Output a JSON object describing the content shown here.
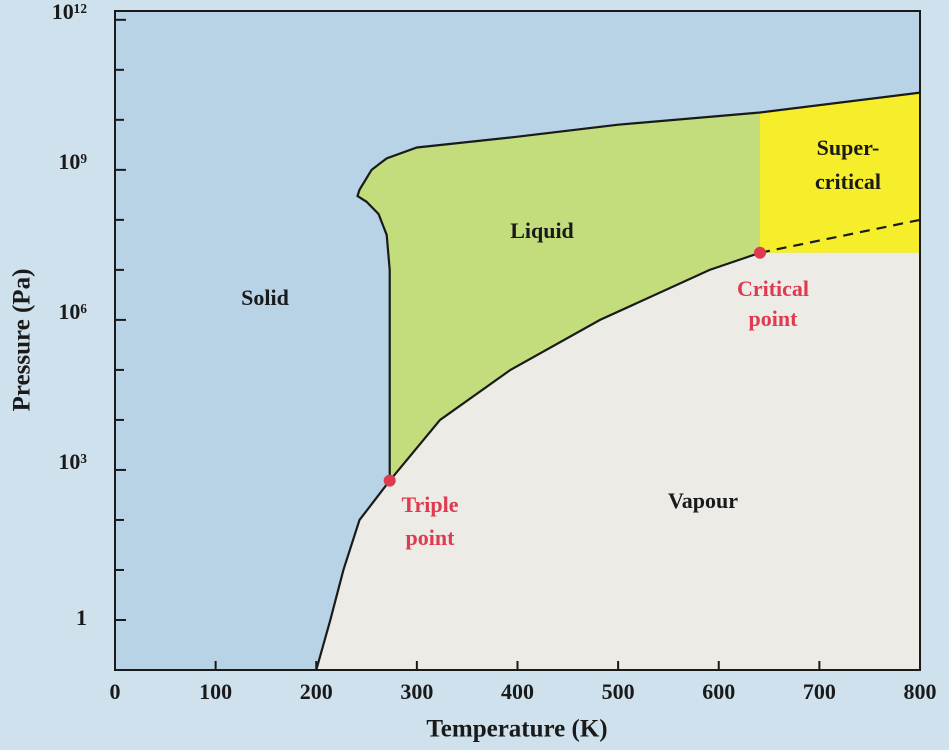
{
  "chart_data": {
    "type": "phase",
    "xlabel": "Temperature (K)",
    "ylabel": "Pressure (Pa)",
    "xlim": [
      0,
      800
    ],
    "xticks": [
      0,
      100,
      200,
      300,
      400,
      500,
      600,
      700,
      800
    ],
    "ylim": [
      0.1,
      1500000000000.0
    ],
    "log_y": true,
    "yticks": [
      1,
      {
        "value": 1000,
        "label": "10³"
      },
      {
        "value": 1000000,
        "label": "10⁶"
      },
      {
        "value": 1000000000,
        "label": "10⁹"
      },
      {
        "value": 1000000000000,
        "label": "10¹²"
      }
    ],
    "yminorticks": [
      10,
      100,
      10000,
      100000,
      10000000,
      100000000,
      10000000000,
      100000000000
    ],
    "series": [
      {
        "x": [
          200,
          214,
          227,
          243,
          273
        ],
        "values": [
          0.1,
          1,
          10,
          100,
          611
        ],
        "color": "#1a1a1a"
      },
      {
        "x": [
          273,
          323,
          393,
          482,
          591,
          641
        ],
        "values": [
          611,
          10000,
          100000,
          1000000,
          10000000,
          22000000
        ],
        "color": "#1a1a1a"
      },
      {
        "x": [
          273,
          273,
          273,
          270,
          262,
          250,
          241,
          243,
          255,
          270,
          300,
          400,
          500,
          641,
          800
        ],
        "values": [
          611,
          100000,
          10000000,
          50000000,
          130000000,
          230000000,
          300000000,
          400000000,
          1000000000,
          1700000000,
          2800000000,
          4600000000,
          8000000000,
          14000000000,
          35000000000
        ],
        "color": "#1a1a1a"
      },
      {
        "x": [
          641,
          800
        ],
        "values": [
          22000000,
          100000000
        ],
        "color": "#1a1a1a",
        "style": "dashed"
      }
    ],
    "points": [
      {
        "x": 273,
        "value": 611,
        "label_lines": [
          "Triple",
          "point"
        ],
        "color": "#e03a50"
      },
      {
        "x": 641,
        "value": 22000000,
        "label_lines": [
          "Critical",
          "point"
        ],
        "color": "#e03a50"
      }
    ],
    "regions": [
      {
        "lines": [
          "Solid"
        ],
        "color": "#b7d3e5"
      },
      {
        "lines": [
          "Liquid"
        ],
        "color": "#c3dc7c"
      },
      {
        "lines": [
          "Vapour"
        ],
        "color": "#ecebe6"
      },
      {
        "lines": [
          "Super-",
          "critical"
        ],
        "color": "#f6ee2a"
      }
    ]
  }
}
